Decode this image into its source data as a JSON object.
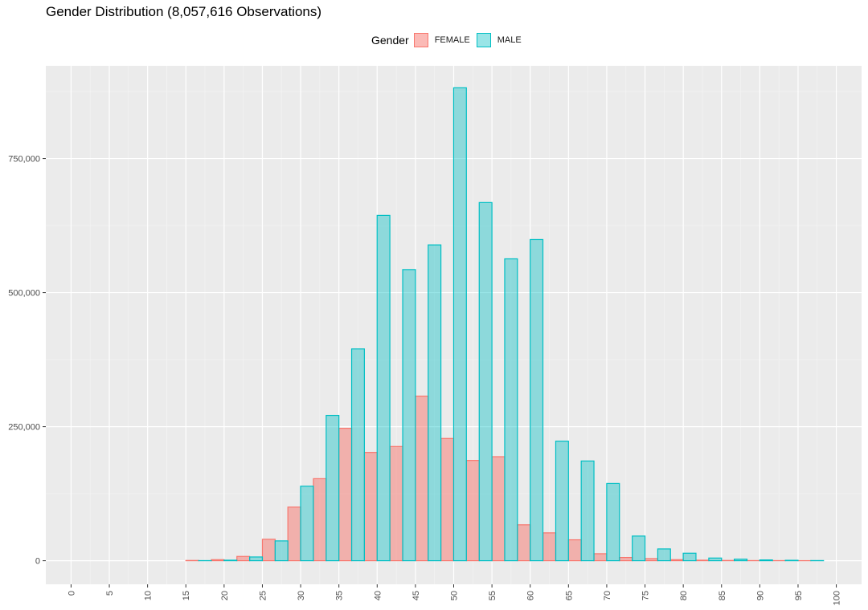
{
  "chart_data": {
    "type": "bar",
    "title": "Gender Distribution (8,057,616 Observations)",
    "legend": {
      "title": "Gender",
      "position": "top",
      "entries": [
        {
          "label": "FEMALE",
          "fill": "#F8766D",
          "fill_opacity": 0.5,
          "stroke": "#F8766D"
        },
        {
          "label": "MALE",
          "fill": "#00BFC4",
          "fill_opacity": 0.4,
          "stroke": "#00BFC4"
        }
      ]
    },
    "xlabel": "",
    "ylabel": "",
    "x_ticks": [
      "0",
      "5",
      "10",
      "15",
      "20",
      "25",
      "30",
      "35",
      "40",
      "45",
      "50",
      "55",
      "60",
      "65",
      "70",
      "75",
      "80",
      "85",
      "90",
      "95",
      "100"
    ],
    "y_ticks": [
      {
        "value": 0,
        "label": "0"
      },
      {
        "value": 250000,
        "label": "250,000"
      },
      {
        "value": 500000,
        "label": "500,000"
      },
      {
        "value": 750000,
        "label": "750,000"
      }
    ],
    "xlim": [
      -3.3,
      103.3
    ],
    "ylim": [
      -44000,
      923000
    ],
    "grid": true,
    "bin_width": 3.33,
    "bin_starts": [
      -1.67,
      1.67,
      5.0,
      8.33,
      11.67,
      15.0,
      18.33,
      21.67,
      25.0,
      28.33,
      31.67,
      35.0,
      38.33,
      41.67,
      45.0,
      48.33,
      51.67,
      55.0,
      58.33,
      61.67,
      65.0,
      68.33,
      71.67,
      75.0,
      78.33,
      81.67,
      85.0,
      88.33,
      91.67,
      95.0
    ],
    "series": [
      {
        "name": "FEMALE",
        "values": [
          0,
          0,
          0,
          0,
          0,
          500,
          2000,
          8000,
          40000,
          100000,
          153000,
          247000,
          202000,
          213000,
          307000,
          228000,
          187000,
          194000,
          67000,
          52000,
          39000,
          13000,
          6000,
          4000,
          2000,
          1000,
          500,
          300,
          200,
          100
        ]
      },
      {
        "name": "MALE",
        "values": [
          0,
          0,
          0,
          0,
          0,
          200,
          1000,
          7000,
          37000,
          139000,
          271000,
          395000,
          644000,
          543000,
          589000,
          882000,
          668000,
          563000,
          599000,
          223000,
          186000,
          144000,
          46000,
          22000,
          14000,
          5000,
          3000,
          1500,
          800,
          300
        ]
      }
    ]
  }
}
